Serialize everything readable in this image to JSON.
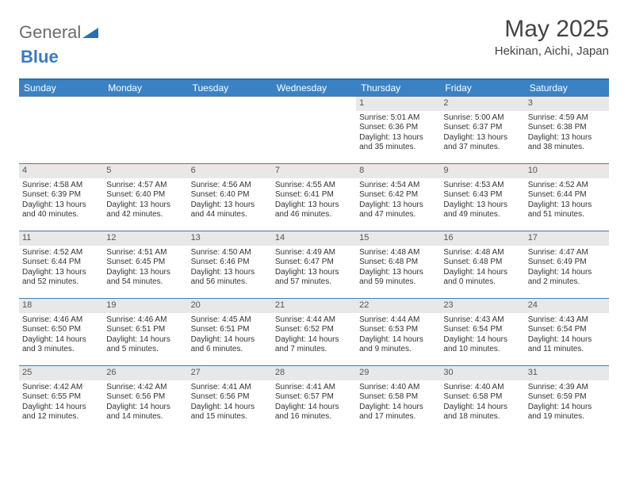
{
  "logo": {
    "part1": "General",
    "part2": "Blue"
  },
  "title": "May 2025",
  "location": "Hekinan, Aichi, Japan",
  "colors": {
    "header_bg": "#3b82c4",
    "header_border": "#2f6eab",
    "row_divider": "#4a7ba8",
    "daynum_bg": "#e8e8e8",
    "text": "#333333",
    "title_text": "#444444",
    "logo_gray": "#6b6b6b",
    "logo_blue": "#3b7bbf",
    "background": "#ffffff"
  },
  "typography": {
    "title_fontsize": 30,
    "location_fontsize": 15,
    "dow_fontsize": 12,
    "daynum_fontsize": 11,
    "body_fontsize": 10
  },
  "dow": [
    "Sunday",
    "Monday",
    "Tuesday",
    "Wednesday",
    "Thursday",
    "Friday",
    "Saturday"
  ],
  "weeks": [
    [
      null,
      null,
      null,
      null,
      {
        "n": "1",
        "sr": "Sunrise: 5:01 AM",
        "ss": "Sunset: 6:36 PM",
        "d1": "Daylight: 13 hours",
        "d2": "and 35 minutes."
      },
      {
        "n": "2",
        "sr": "Sunrise: 5:00 AM",
        "ss": "Sunset: 6:37 PM",
        "d1": "Daylight: 13 hours",
        "d2": "and 37 minutes."
      },
      {
        "n": "3",
        "sr": "Sunrise: 4:59 AM",
        "ss": "Sunset: 6:38 PM",
        "d1": "Daylight: 13 hours",
        "d2": "and 38 minutes."
      }
    ],
    [
      {
        "n": "4",
        "sr": "Sunrise: 4:58 AM",
        "ss": "Sunset: 6:39 PM",
        "d1": "Daylight: 13 hours",
        "d2": "and 40 minutes."
      },
      {
        "n": "5",
        "sr": "Sunrise: 4:57 AM",
        "ss": "Sunset: 6:40 PM",
        "d1": "Daylight: 13 hours",
        "d2": "and 42 minutes."
      },
      {
        "n": "6",
        "sr": "Sunrise: 4:56 AM",
        "ss": "Sunset: 6:40 PM",
        "d1": "Daylight: 13 hours",
        "d2": "and 44 minutes."
      },
      {
        "n": "7",
        "sr": "Sunrise: 4:55 AM",
        "ss": "Sunset: 6:41 PM",
        "d1": "Daylight: 13 hours",
        "d2": "and 46 minutes."
      },
      {
        "n": "8",
        "sr": "Sunrise: 4:54 AM",
        "ss": "Sunset: 6:42 PM",
        "d1": "Daylight: 13 hours",
        "d2": "and 47 minutes."
      },
      {
        "n": "9",
        "sr": "Sunrise: 4:53 AM",
        "ss": "Sunset: 6:43 PM",
        "d1": "Daylight: 13 hours",
        "d2": "and 49 minutes."
      },
      {
        "n": "10",
        "sr": "Sunrise: 4:52 AM",
        "ss": "Sunset: 6:44 PM",
        "d1": "Daylight: 13 hours",
        "d2": "and 51 minutes."
      }
    ],
    [
      {
        "n": "11",
        "sr": "Sunrise: 4:52 AM",
        "ss": "Sunset: 6:44 PM",
        "d1": "Daylight: 13 hours",
        "d2": "and 52 minutes."
      },
      {
        "n": "12",
        "sr": "Sunrise: 4:51 AM",
        "ss": "Sunset: 6:45 PM",
        "d1": "Daylight: 13 hours",
        "d2": "and 54 minutes."
      },
      {
        "n": "13",
        "sr": "Sunrise: 4:50 AM",
        "ss": "Sunset: 6:46 PM",
        "d1": "Daylight: 13 hours",
        "d2": "and 56 minutes."
      },
      {
        "n": "14",
        "sr": "Sunrise: 4:49 AM",
        "ss": "Sunset: 6:47 PM",
        "d1": "Daylight: 13 hours",
        "d2": "and 57 minutes."
      },
      {
        "n": "15",
        "sr": "Sunrise: 4:48 AM",
        "ss": "Sunset: 6:48 PM",
        "d1": "Daylight: 13 hours",
        "d2": "and 59 minutes."
      },
      {
        "n": "16",
        "sr": "Sunrise: 4:48 AM",
        "ss": "Sunset: 6:48 PM",
        "d1": "Daylight: 14 hours",
        "d2": "and 0 minutes."
      },
      {
        "n": "17",
        "sr": "Sunrise: 4:47 AM",
        "ss": "Sunset: 6:49 PM",
        "d1": "Daylight: 14 hours",
        "d2": "and 2 minutes."
      }
    ],
    [
      {
        "n": "18",
        "sr": "Sunrise: 4:46 AM",
        "ss": "Sunset: 6:50 PM",
        "d1": "Daylight: 14 hours",
        "d2": "and 3 minutes."
      },
      {
        "n": "19",
        "sr": "Sunrise: 4:46 AM",
        "ss": "Sunset: 6:51 PM",
        "d1": "Daylight: 14 hours",
        "d2": "and 5 minutes."
      },
      {
        "n": "20",
        "sr": "Sunrise: 4:45 AM",
        "ss": "Sunset: 6:51 PM",
        "d1": "Daylight: 14 hours",
        "d2": "and 6 minutes."
      },
      {
        "n": "21",
        "sr": "Sunrise: 4:44 AM",
        "ss": "Sunset: 6:52 PM",
        "d1": "Daylight: 14 hours",
        "d2": "and 7 minutes."
      },
      {
        "n": "22",
        "sr": "Sunrise: 4:44 AM",
        "ss": "Sunset: 6:53 PM",
        "d1": "Daylight: 14 hours",
        "d2": "and 9 minutes."
      },
      {
        "n": "23",
        "sr": "Sunrise: 4:43 AM",
        "ss": "Sunset: 6:54 PM",
        "d1": "Daylight: 14 hours",
        "d2": "and 10 minutes."
      },
      {
        "n": "24",
        "sr": "Sunrise: 4:43 AM",
        "ss": "Sunset: 6:54 PM",
        "d1": "Daylight: 14 hours",
        "d2": "and 11 minutes."
      }
    ],
    [
      {
        "n": "25",
        "sr": "Sunrise: 4:42 AM",
        "ss": "Sunset: 6:55 PM",
        "d1": "Daylight: 14 hours",
        "d2": "and 12 minutes."
      },
      {
        "n": "26",
        "sr": "Sunrise: 4:42 AM",
        "ss": "Sunset: 6:56 PM",
        "d1": "Daylight: 14 hours",
        "d2": "and 14 minutes."
      },
      {
        "n": "27",
        "sr": "Sunrise: 4:41 AM",
        "ss": "Sunset: 6:56 PM",
        "d1": "Daylight: 14 hours",
        "d2": "and 15 minutes."
      },
      {
        "n": "28",
        "sr": "Sunrise: 4:41 AM",
        "ss": "Sunset: 6:57 PM",
        "d1": "Daylight: 14 hours",
        "d2": "and 16 minutes."
      },
      {
        "n": "29",
        "sr": "Sunrise: 4:40 AM",
        "ss": "Sunset: 6:58 PM",
        "d1": "Daylight: 14 hours",
        "d2": "and 17 minutes."
      },
      {
        "n": "30",
        "sr": "Sunrise: 4:40 AM",
        "ss": "Sunset: 6:58 PM",
        "d1": "Daylight: 14 hours",
        "d2": "and 18 minutes."
      },
      {
        "n": "31",
        "sr": "Sunrise: 4:39 AM",
        "ss": "Sunset: 6:59 PM",
        "d1": "Daylight: 14 hours",
        "d2": "and 19 minutes."
      }
    ]
  ]
}
